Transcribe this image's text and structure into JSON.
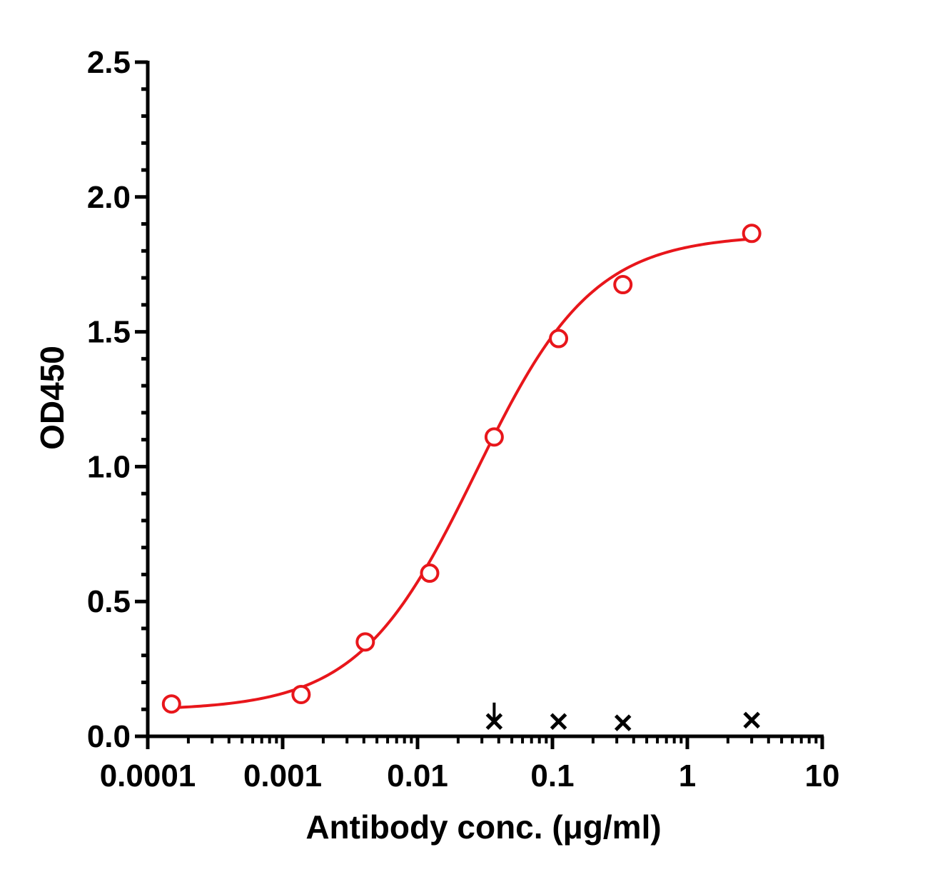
{
  "chart_data": {
    "type": "scatter",
    "xlabel": "Antibody conc. (μg/ml)",
    "ylabel": "OD450",
    "x_scale": "log",
    "xlim": [
      0.0001,
      10
    ],
    "ylim": [
      0,
      2.5
    ],
    "x_ticks": [
      {
        "value": 0.0001,
        "label": "0.0001"
      },
      {
        "value": 0.001,
        "label": "0.001"
      },
      {
        "value": 0.01,
        "label": "0.01"
      },
      {
        "value": 0.1,
        "label": "0.1"
      },
      {
        "value": 1,
        "label": "1"
      },
      {
        "value": 10,
        "label": "10"
      }
    ],
    "y_ticks": [
      {
        "value": 0,
        "label": "0.0"
      },
      {
        "value": 0.5,
        "label": "0.5"
      },
      {
        "value": 1.0,
        "label": "1.0"
      },
      {
        "value": 1.5,
        "label": "1.5"
      },
      {
        "value": 2.0,
        "label": "2.0"
      },
      {
        "value": 2.5,
        "label": "2.5"
      }
    ],
    "grid": false,
    "legend": "none",
    "series": [
      {
        "marker": "open-circle",
        "color": "#e8161b",
        "x": [
          0.00015,
          0.00137,
          0.0041,
          0.0123,
          0.037,
          0.111,
          0.333,
          3.0
        ],
        "y": [
          0.12,
          0.155,
          0.35,
          0.605,
          1.11,
          1.475,
          1.675,
          1.865
        ],
        "fit": {
          "type": "4PL",
          "color": "#e8161b",
          "bottom": 0.096,
          "top": 1.86,
          "ec50": 0.027,
          "hill": 1.0
        }
      },
      {
        "marker": "x",
        "color": "#000000",
        "x": [
          0.037,
          0.111,
          0.333,
          3.0
        ],
        "y": [
          0.055,
          0.055,
          0.05,
          0.06
        ],
        "error_up": [
          0.07,
          0.0,
          0.0,
          0.0
        ]
      }
    ]
  }
}
